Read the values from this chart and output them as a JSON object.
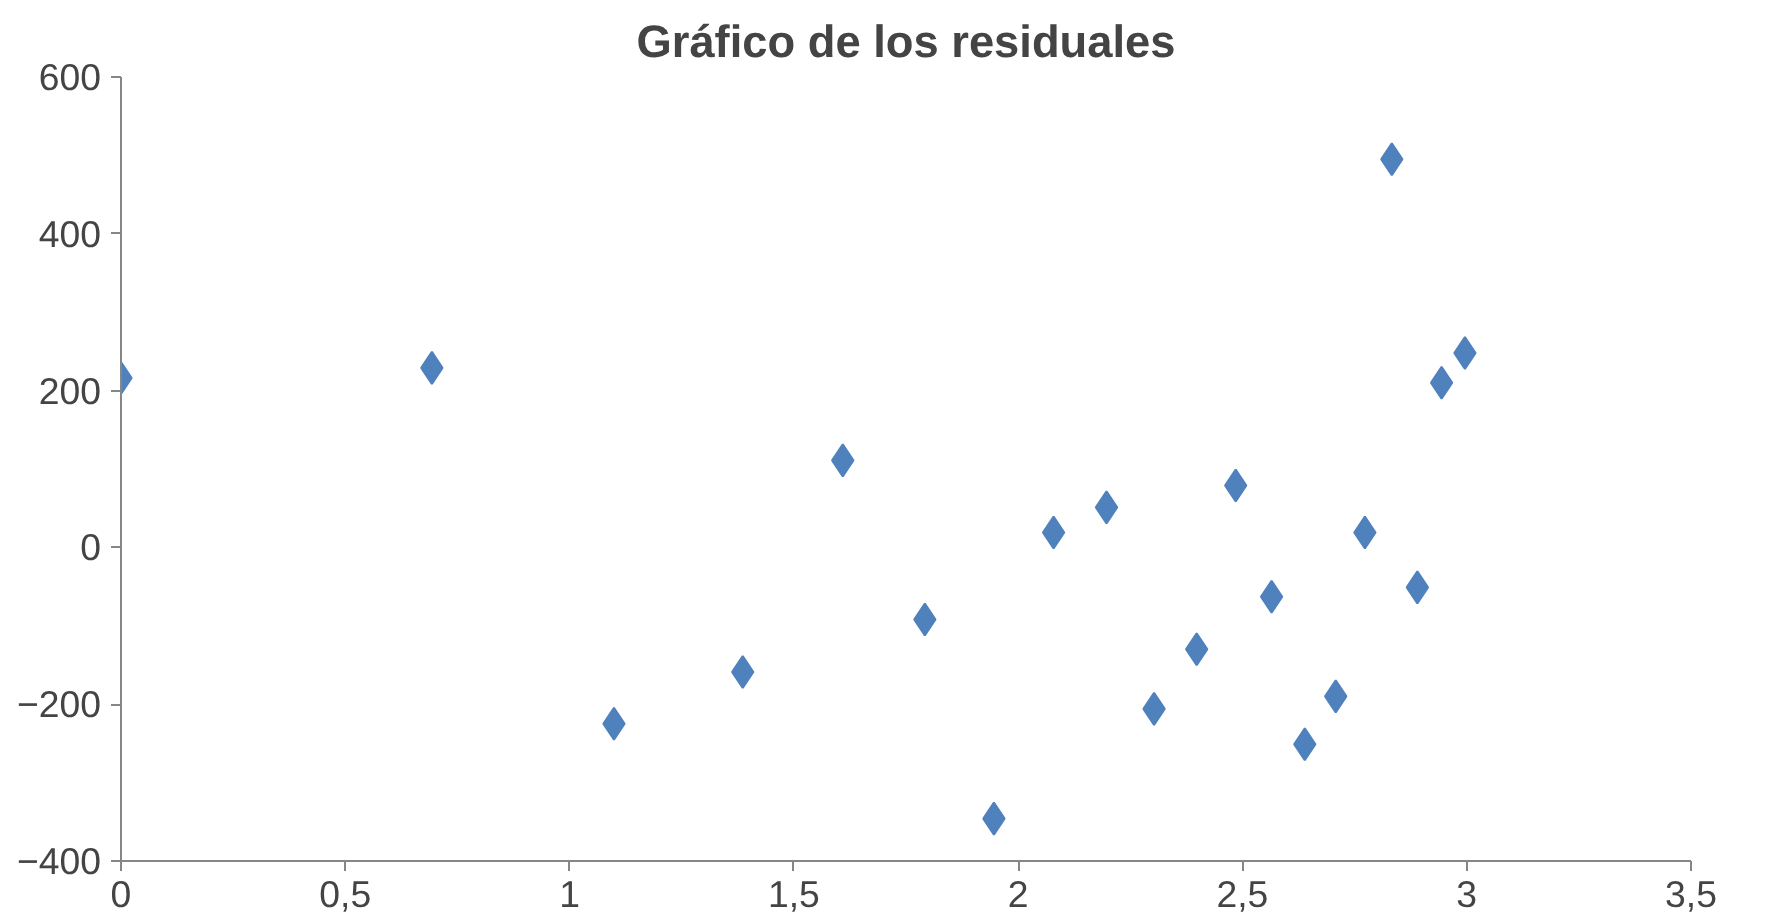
{
  "chart_data": {
    "type": "scatter",
    "title": "Gráfico de los residuales",
    "x": [
      0,
      0.693,
      1.099,
      1.386,
      1.609,
      1.792,
      1.946,
      2.079,
      2.197,
      2.303,
      2.398,
      2.485,
      2.565,
      2.639,
      2.708,
      2.773,
      2.833,
      2.89,
      2.944,
      2.996
    ],
    "series": [
      {
        "color": "#4f81bd",
        "values": [
          216,
          229,
          -225,
          -159,
          111,
          -92,
          -346,
          19,
          51,
          -206,
          -130,
          79,
          -63,
          -251,
          -190,
          19,
          495,
          -51,
          210,
          248
        ]
      }
    ],
    "marker": "diamond",
    "grid": false,
    "xlim": [
      0,
      3.5
    ],
    "ylim": [
      -400,
      600
    ],
    "xticks": [
      0,
      {
        "value": 0.5,
        "label": "0,5"
      },
      1,
      {
        "value": 1.5,
        "label": "1,5"
      },
      2,
      {
        "value": 2.5,
        "label": "2,5"
      },
      3,
      {
        "value": 3.5,
        "label": "3,5"
      }
    ],
    "yticks": [
      -400,
      -200,
      0,
      200,
      400,
      600
    ]
  }
}
